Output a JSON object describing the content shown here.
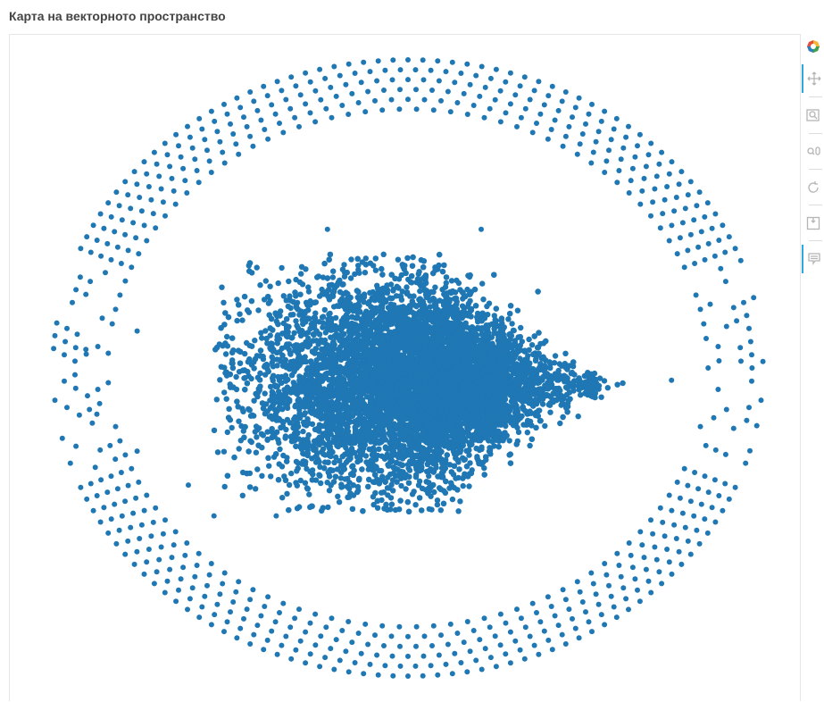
{
  "title": "Карта на векторното пространство",
  "colors": {
    "point": "#1f77b4",
    "toolbar_icon": "#b5b5b5",
    "active_tool": "#26aae1"
  },
  "toolbar": [
    {
      "name": "bokeh-logo-icon",
      "active": false
    },
    {
      "name": "pan-tool-icon",
      "active": true
    },
    {
      "name": "box-zoom-tool-icon",
      "active": false
    },
    {
      "name": "wheel-zoom-tool-icon",
      "active": false
    },
    {
      "name": "reset-tool-icon",
      "active": false
    },
    {
      "name": "save-tool-icon",
      "active": false
    },
    {
      "name": "hover-tool-icon",
      "active": true
    }
  ],
  "chart_data": {
    "type": "scatter",
    "title": "Карта на векторното пространство",
    "xlabel": "",
    "ylabel": "",
    "grid": false,
    "axes_visible": false,
    "series": [
      {
        "description_of_shape": "outer_ring",
        "center": [
          0.0,
          0.0
        ],
        "radius_x": [
          0.82,
          0.97
        ],
        "radius_y": [
          0.84,
          1.0
        ],
        "approx_points": 1000
      },
      {
        "description_of_shape": "dense_core",
        "center": [
          0.03,
          -0.05
        ],
        "spread_x": 0.2,
        "spread_y": 0.17,
        "approx_points": 9000
      },
      {
        "description_of_shape": "scattered_outliers",
        "points": [
          [
            -0.74,
            0.12
          ],
          [
            -0.85,
            -0.15
          ],
          [
            -0.74,
            -0.27
          ],
          [
            -0.6,
            -0.38
          ],
          [
            -0.53,
            -0.48
          ],
          [
            -0.36,
            -0.48
          ],
          [
            -0.22,
            0.45
          ],
          [
            0.2,
            0.45
          ],
          [
            0.72,
            -0.04
          ],
          [
            -0.88,
            0.06
          ]
        ]
      }
    ]
  }
}
